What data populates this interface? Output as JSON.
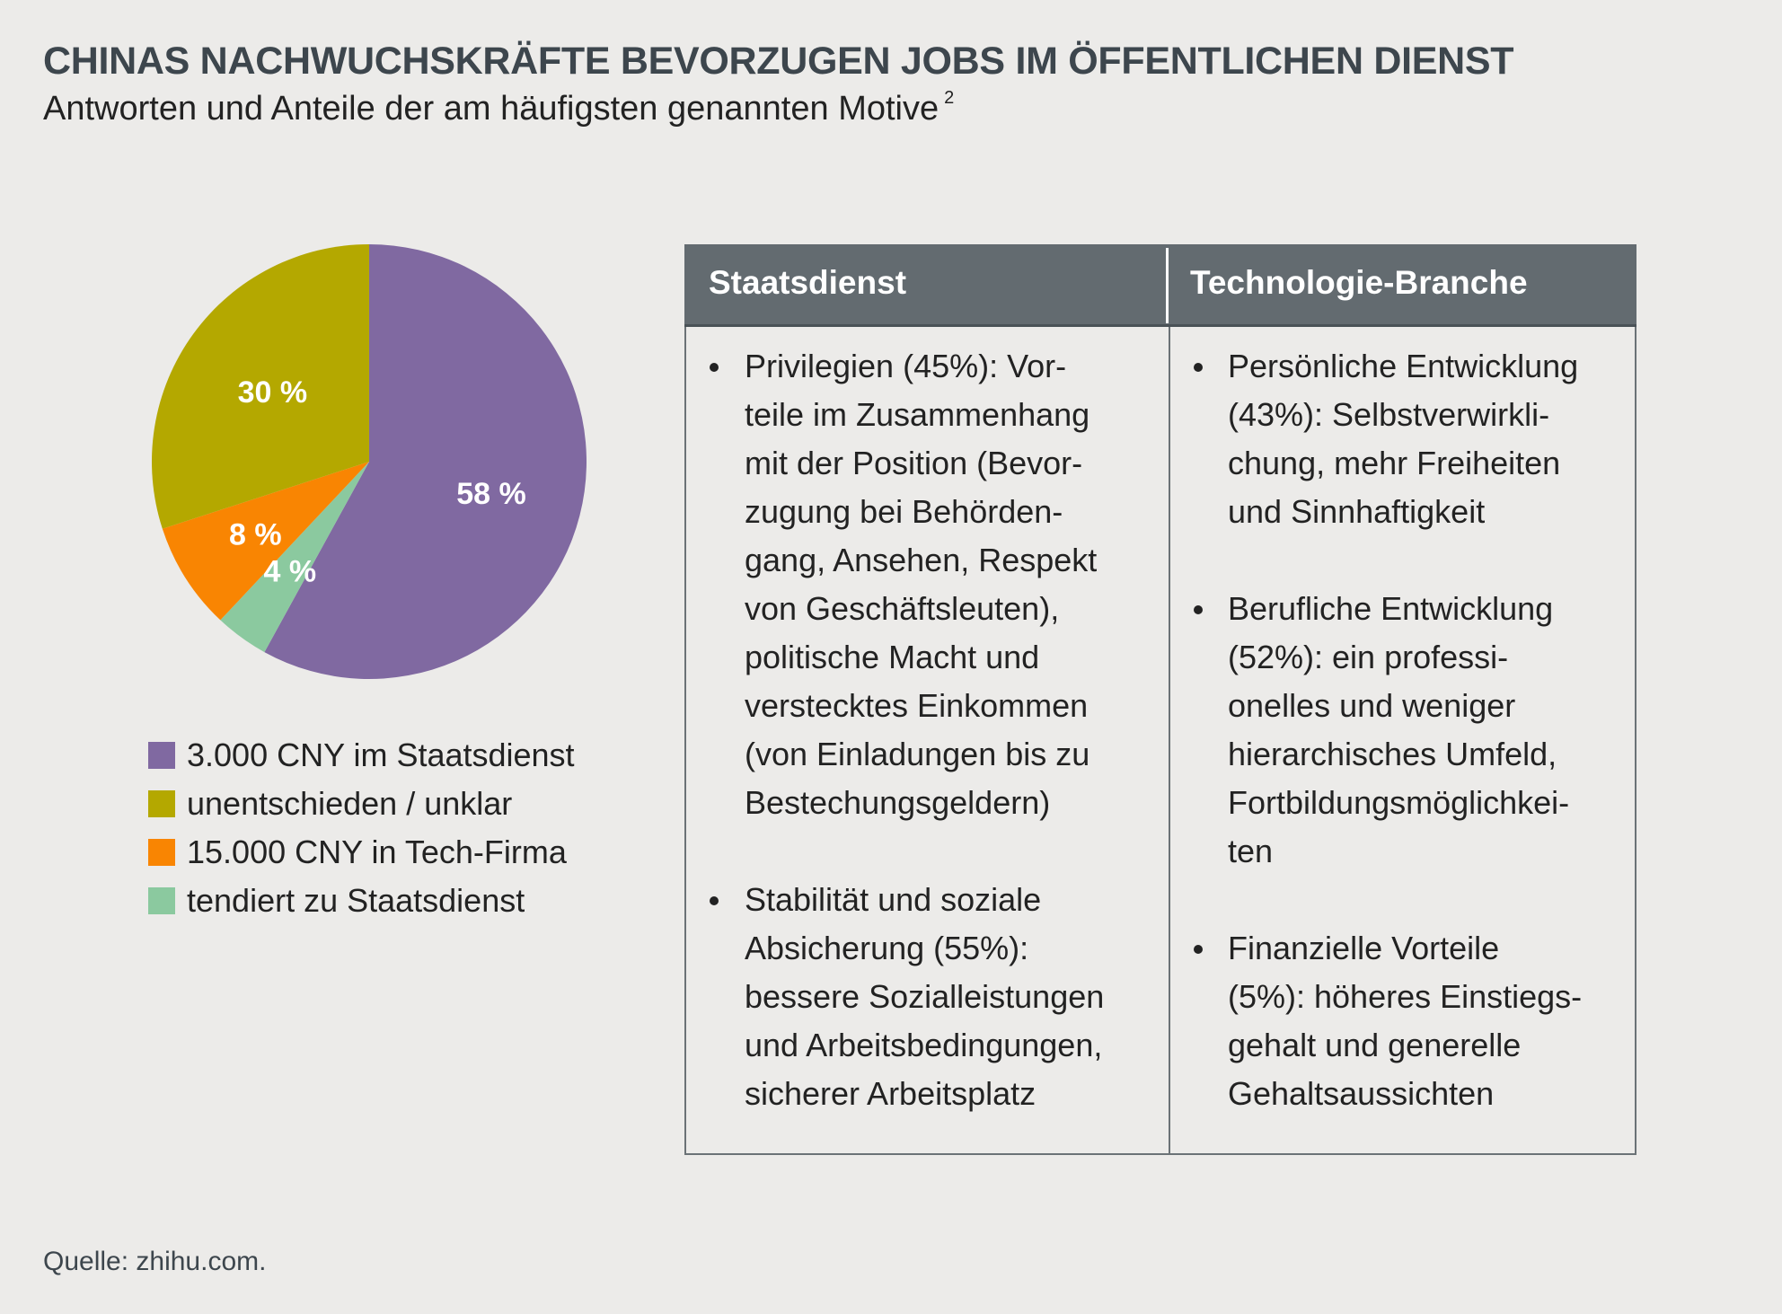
{
  "header": {
    "title": "CHINAS NACHWUCHSKRÄFTE BEVORZUGEN JOBS IM ÖFFENTLICHEN DIENST",
    "subtitle": "Antworten und Anteile der am häufigsten genannten Motive",
    "subtitle_footnote": "2"
  },
  "chart_data": {
    "type": "pie",
    "title": "Antworten",
    "start": "top",
    "direction": "clockwise",
    "slices": [
      {
        "label": "3.000 CNY im Staatsdienst",
        "value": 58,
        "display": "58 %",
        "color": "#8069a1"
      },
      {
        "label": "tendiert zu Staatsdienst",
        "value": 4,
        "display": "4 %",
        "color": "#8bc99f"
      },
      {
        "label": "15.000 CNY in Tech-Firma",
        "value": 8,
        "display": "8 %",
        "color": "#f98502"
      },
      {
        "label": "unentschieden / unklar",
        "value": 30,
        "display": "30 %",
        "color": "#b4a800"
      }
    ],
    "legend": {
      "placement": "bottom",
      "entries": [
        {
          "label": "3.000 CNY im Staatsdienst",
          "color": "#8069a1"
        },
        {
          "label": "unentschieden / unklar",
          "color": "#b4a800"
        },
        {
          "label": "15.000 CNY in Tech-Firma",
          "color": "#f98502"
        },
        {
          "label": "tendiert zu Staatsdienst",
          "color": "#8bc99f"
        }
      ]
    }
  },
  "table": {
    "columns": [
      "Staatsdienst",
      "Technologie-Branche"
    ],
    "left_items": [
      {
        "lines": [
          "Privilegien (45%): Vor-",
          "teile im Zusammenhang",
          "mit der Position (Bevor-",
          "zugung bei Behörden-",
          "gang, Ansehen, Respekt",
          "von Geschäftsleuten),",
          "politische Macht und",
          "verstecktes Einkommen",
          "(von Einladungen bis zu",
          "Bestechungsgeldern)"
        ]
      },
      {
        "lines": [
          "Stabilität und soziale",
          "Absicherung (55%):",
          "bessere Sozialleistungen",
          "und Arbeitsbedingungen,",
          "sicherer Arbeitsplatz"
        ]
      }
    ],
    "right_items": [
      {
        "lines": [
          "Persönliche Entwicklung",
          "(43%): Selbstverwirkli-",
          "chung, mehr Freiheiten",
          "und Sinnhaftigkeit"
        ]
      },
      {
        "lines": [
          "Berufliche Entwicklung",
          "(52%): ein professi-",
          "onelles und weniger",
          "hierarchisches Umfeld,",
          "Fortbildungsmöglichkei-",
          "ten"
        ]
      },
      {
        "lines": [
          "Finanzielle Vorteile",
          "(5%): höheres Einstiegs-",
          "gehalt und generelle",
          "Gehaltsaussichten"
        ]
      }
    ]
  },
  "footer": {
    "source": "Quelle: zhihu.com."
  },
  "colors": {
    "background": "#ecebe9",
    "title": "#3d464d",
    "table_header": "#636b70"
  }
}
